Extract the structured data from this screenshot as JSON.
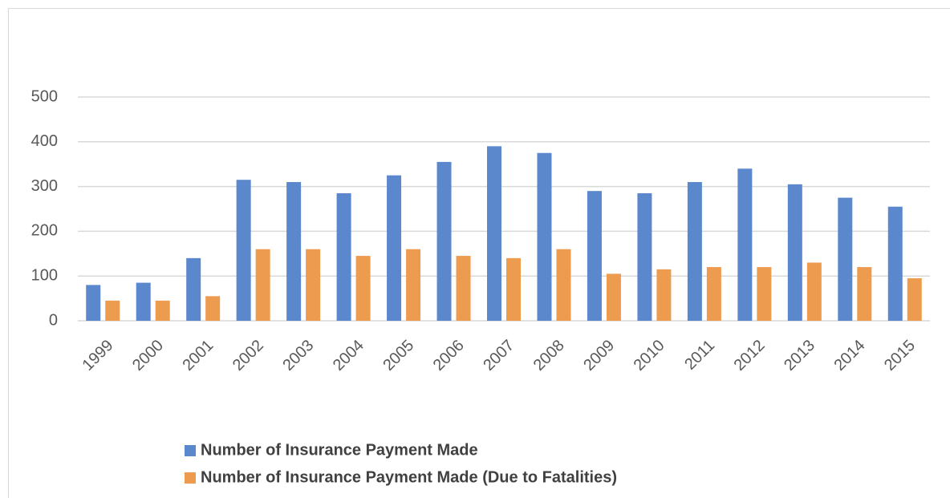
{
  "chart_data": {
    "type": "bar",
    "categories": [
      "1999",
      "2000",
      "2001",
      "2002",
      "2003",
      "2004",
      "2005",
      "2006",
      "2007",
      "2008",
      "2009",
      "2010",
      "2011",
      "2012",
      "2013",
      "2014",
      "2015"
    ],
    "series": [
      {
        "name": "Number of Insurance Payment Made",
        "color": "#5b87cd",
        "values": [
          80,
          85,
          140,
          315,
          310,
          285,
          325,
          355,
          390,
          375,
          290,
          285,
          310,
          340,
          305,
          275,
          255
        ]
      },
      {
        "name": "Number of Insurance Payment Made (Due to Fatalities)",
        "color": "#ed9b4f",
        "values": [
          45,
          45,
          55,
          160,
          160,
          145,
          160,
          145,
          140,
          160,
          105,
          115,
          120,
          120,
          130,
          120,
          95
        ]
      }
    ],
    "ylim": [
      0,
      500
    ],
    "yticks": [
      0,
      100,
      200,
      300,
      400,
      500
    ],
    "grid": true
  }
}
